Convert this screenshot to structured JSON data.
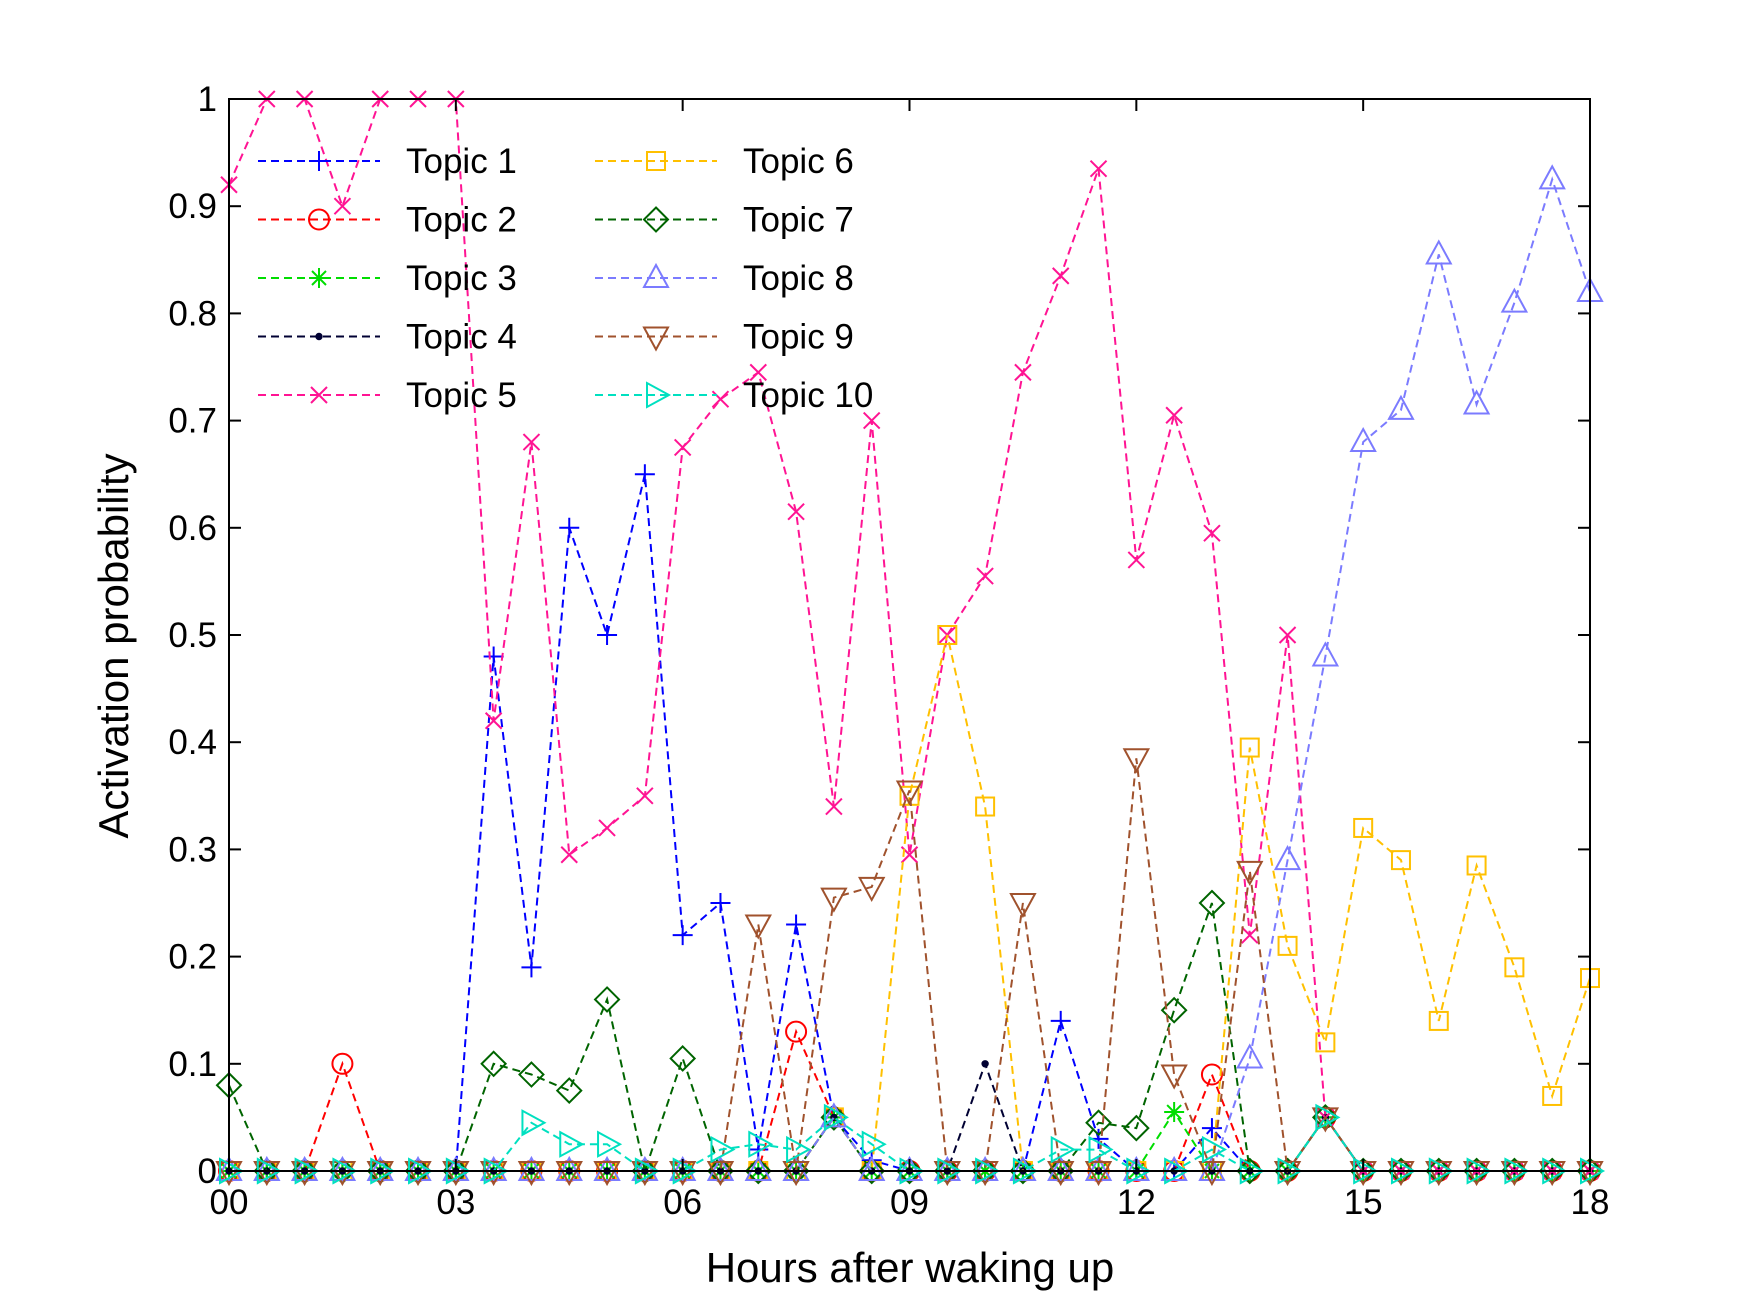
{
  "chart_data": {
    "type": "line",
    "title": "",
    "xlabel": "Hours after waking up",
    "ylabel": "Activation probability",
    "xlim": [
      0,
      18
    ],
    "ylim": [
      0,
      1
    ],
    "xticks": [
      0,
      3,
      6,
      9,
      12,
      15,
      18
    ],
    "xtick_labels": [
      "00",
      "03",
      "06",
      "09",
      "12",
      "15",
      "18"
    ],
    "yticks": [
      0,
      0.1,
      0.2,
      0.3,
      0.4,
      0.5,
      0.6,
      0.7,
      0.8,
      0.9,
      1
    ],
    "ytick_labels": [
      "0",
      "0.1",
      "0.2",
      "0.3",
      "0.4",
      "0.5",
      "0.6",
      "0.7",
      "0.8",
      "0.9",
      "1"
    ],
    "grid": false,
    "legend_position": "top-left",
    "x": [
      0,
      0.5,
      1,
      1.5,
      2,
      2.5,
      3,
      3.5,
      4,
      4.5,
      5,
      5.5,
      6,
      6.5,
      7,
      7.5,
      8,
      8.5,
      9,
      9.5,
      10,
      10.5,
      11,
      11.5,
      12,
      12.5,
      13,
      13.5,
      14,
      14.5,
      15,
      15.5,
      16,
      16.5,
      17,
      17.5,
      18
    ],
    "series": [
      {
        "name": "Topic 1",
        "color": "#0000ff",
        "marker": "plus",
        "values": [
          0,
          0,
          0,
          0,
          0,
          0,
          0,
          0.48,
          0.19,
          0.6,
          0.5,
          0.65,
          0.22,
          0.25,
          0.02,
          0.23,
          0.05,
          0.01,
          0,
          0,
          0,
          0,
          0.14,
          0.03,
          0,
          0,
          0.04,
          0,
          0,
          0.05,
          0,
          0,
          0,
          0,
          0,
          0,
          0
        ]
      },
      {
        "name": "Topic 2",
        "color": "#ff0000",
        "marker": "circle",
        "values": [
          0,
          0,
          0,
          0.1,
          0,
          0,
          0,
          0,
          0,
          0,
          0,
          0,
          0,
          0,
          0,
          0.13,
          0.05,
          0,
          0,
          0,
          0,
          0,
          0,
          0,
          0,
          0,
          0.09,
          0,
          0,
          0.05,
          0,
          0,
          0,
          0,
          0,
          0,
          0
        ]
      },
      {
        "name": "Topic 3",
        "color": "#00dd00",
        "marker": "asterisk",
        "values": [
          0,
          0,
          0,
          0,
          0,
          0,
          0,
          0,
          0,
          0,
          0,
          0,
          0,
          0,
          0,
          0,
          0.05,
          0,
          0,
          0,
          0,
          0,
          0,
          0,
          0,
          0.055,
          0,
          0,
          0,
          0.05,
          0,
          0,
          0,
          0,
          0,
          0,
          0
        ]
      },
      {
        "name": "Topic 4",
        "color": "#000033",
        "marker": "dot",
        "values": [
          0,
          0,
          0,
          0,
          0,
          0,
          0,
          0,
          0,
          0,
          0,
          0,
          0,
          0,
          0,
          0,
          0.05,
          0,
          0,
          0,
          0.1,
          0,
          0,
          0,
          0,
          0,
          0,
          0,
          0,
          0.05,
          0,
          0,
          0,
          0,
          0,
          0,
          0
        ]
      },
      {
        "name": "Topic 5",
        "color": "#ff1493",
        "marker": "x",
        "values": [
          0.92,
          1.0,
          1.0,
          0.9,
          1.0,
          1.0,
          1.0,
          0.42,
          0.68,
          0.295,
          0.32,
          0.35,
          0.675,
          0.72,
          0.745,
          0.615,
          0.34,
          0.7,
          0.295,
          0.5,
          0.555,
          0.745,
          0.835,
          0.935,
          0.57,
          0.705,
          0.595,
          0.22,
          0.5,
          0.05,
          0,
          0,
          0,
          0,
          0,
          0,
          0
        ]
      },
      {
        "name": "Topic 6",
        "color": "#ffc000",
        "marker": "square",
        "values": [
          0,
          0,
          0,
          0,
          0,
          0,
          0,
          0,
          0,
          0,
          0,
          0,
          0,
          0,
          0,
          0,
          0.05,
          0,
          0.35,
          0.5,
          0.34,
          0,
          0,
          0,
          0,
          0,
          0,
          0.395,
          0.21,
          0.12,
          0.32,
          0.29,
          0.14,
          0.285,
          0.19,
          0.07,
          0.18
        ]
      },
      {
        "name": "Topic 7",
        "color": "#006400",
        "marker": "diamond",
        "values": [
          0.08,
          0,
          0,
          0,
          0,
          0,
          0,
          0.1,
          0.09,
          0.075,
          0.16,
          0,
          0.105,
          0,
          0,
          0,
          0.05,
          0,
          0,
          0,
          0,
          0,
          0,
          0.045,
          0.04,
          0.15,
          0.25,
          0,
          0,
          0.05,
          0,
          0,
          0,
          0,
          0,
          0,
          0
        ]
      },
      {
        "name": "Topic 8",
        "color": "#7b7bff",
        "marker": "triangle-up",
        "values": [
          0,
          0,
          0,
          0,
          0,
          0,
          0,
          0,
          0,
          0,
          0,
          0,
          0,
          0,
          0,
          0,
          0.05,
          0,
          0,
          0,
          0,
          0,
          0,
          0,
          0,
          0,
          0,
          0.105,
          0.29,
          0.48,
          0.68,
          0.71,
          0.855,
          0.715,
          0.81,
          0.925,
          0.82
        ]
      },
      {
        "name": "Topic 9",
        "color": "#a0522d",
        "marker": "triangle-down",
        "values": [
          0,
          0,
          0,
          0,
          0,
          0,
          0,
          0,
          0,
          0,
          0,
          0,
          0,
          0,
          0.23,
          0,
          0.255,
          0.265,
          0.355,
          0,
          0,
          0.25,
          0,
          0,
          0.385,
          0.09,
          0,
          0.28,
          0,
          0.05,
          0,
          0,
          0,
          0,
          0,
          0,
          0
        ]
      },
      {
        "name": "Topic 10",
        "color": "#00e0c0",
        "marker": "triangle-right",
        "values": [
          0,
          0,
          0,
          0,
          0,
          0,
          0,
          0,
          0.045,
          0.025,
          0.025,
          0,
          0,
          0.02,
          0.025,
          0.02,
          0.05,
          0.025,
          0,
          0,
          0,
          0,
          0.02,
          0.02,
          0,
          0,
          0.02,
          0,
          0,
          0.05,
          0,
          0,
          0,
          0,
          0,
          0,
          0
        ]
      }
    ]
  }
}
